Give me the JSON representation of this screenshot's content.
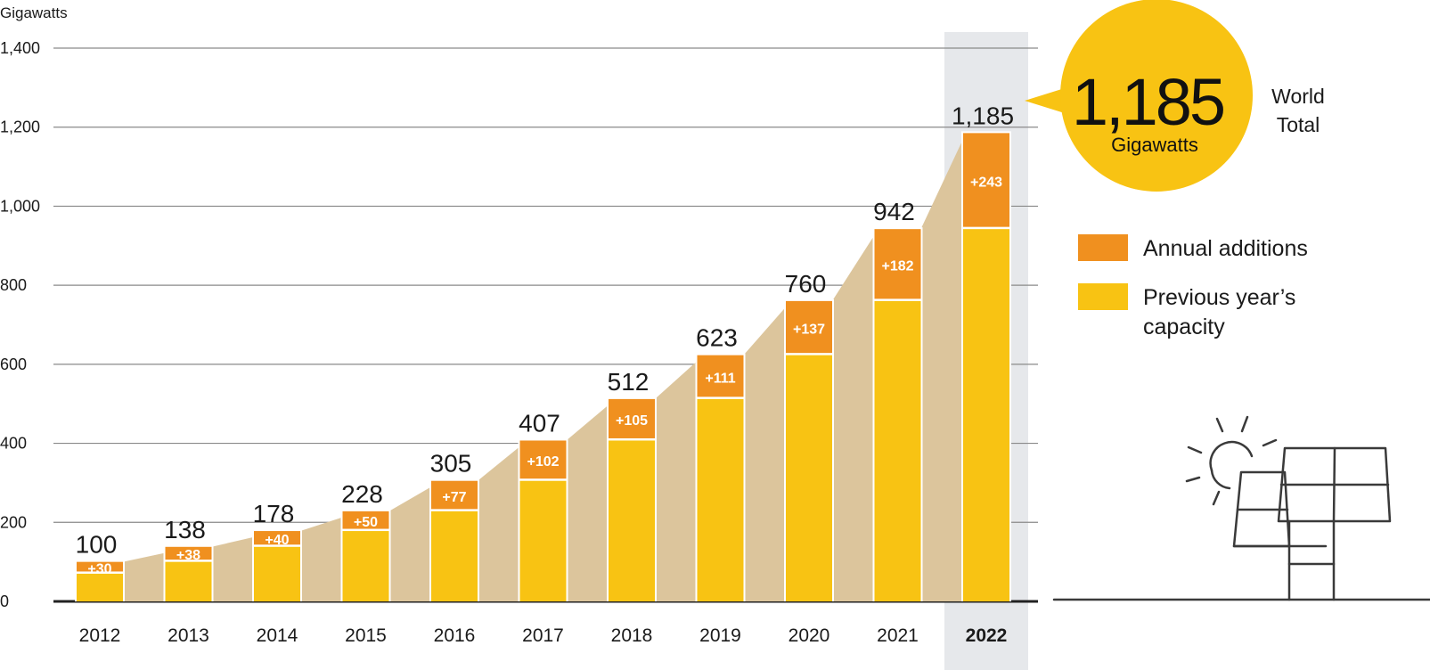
{
  "colors": {
    "additions": "#f0901f",
    "previous": "#f8c313",
    "trend_area": "#dcc59c",
    "highlight_band": "#e6e8eb",
    "callout": "#f8c313",
    "gridline": "#8a8a8a",
    "baseline": "#222222"
  },
  "icon": "solar-panel-sun-icon",
  "callout": {
    "value": "1,185",
    "unit": "Gigawatts",
    "side_label_line1": "World",
    "side_label_line2": "Total"
  },
  "chart_data": {
    "type": "bar",
    "stacked": true,
    "ylabel": "Gigawatts",
    "ylim": [
      0,
      1400
    ],
    "yticks": [
      0,
      200,
      400,
      600,
      800,
      1000,
      1200,
      1400
    ],
    "ytick_labels": [
      "0",
      "200",
      "400",
      "600",
      "800",
      "1,000",
      "1,200",
      "1,400"
    ],
    "grid": true,
    "legend_placement": "right",
    "highlight_category": "2022",
    "categories": [
      "2012",
      "2013",
      "2014",
      "2015",
      "2016",
      "2017",
      "2018",
      "2019",
      "2020",
      "2021",
      "2022"
    ],
    "totals": [
      100,
      138,
      178,
      228,
      305,
      407,
      512,
      623,
      760,
      942,
      1185
    ],
    "total_labels": [
      "100",
      "138",
      "178",
      "228",
      "305",
      "407",
      "512",
      "623",
      "760",
      "942",
      "1,185"
    ],
    "series": [
      {
        "name": "Previous year's capacity",
        "legend_line1": "Previous year’s",
        "legend_line2": "capacity",
        "values": [
          70,
          100,
          138,
          178,
          228,
          305,
          407,
          512,
          623,
          760,
          942
        ]
      },
      {
        "name": "Annual additions",
        "values": [
          30,
          38,
          40,
          50,
          77,
          102,
          105,
          111,
          137,
          182,
          243
        ],
        "labels": [
          "+30",
          "+38",
          "+40",
          "+50",
          "+77",
          "+102",
          "+105",
          "+111",
          "+137",
          "+182",
          "+243"
        ]
      }
    ]
  }
}
